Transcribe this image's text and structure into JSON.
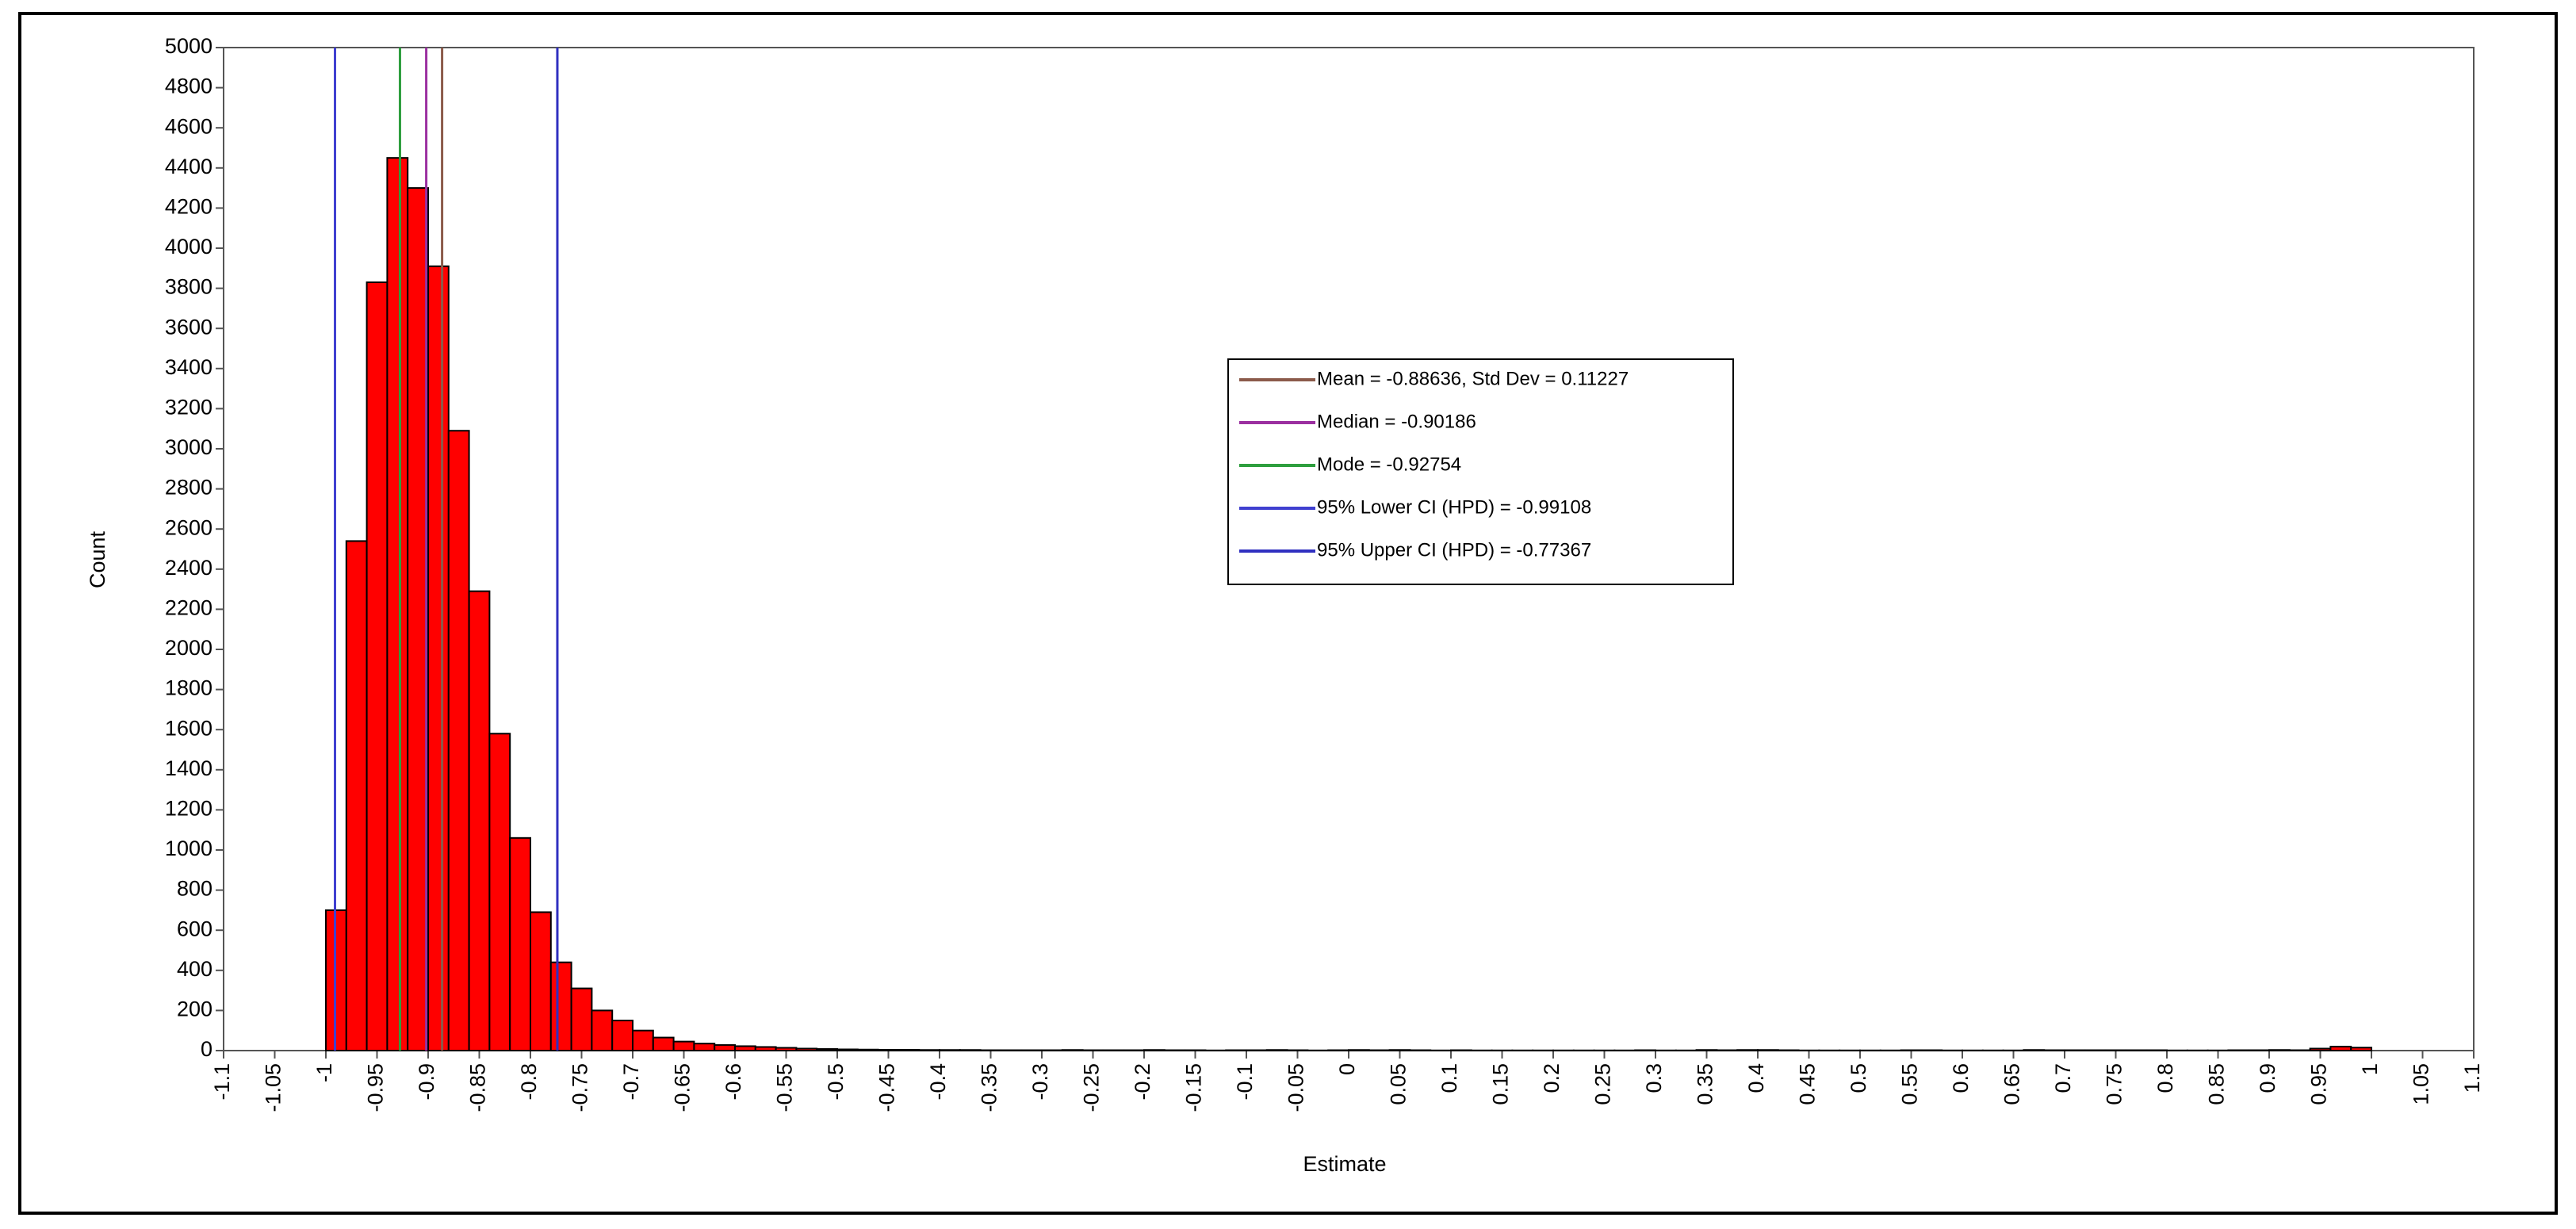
{
  "chart_data": {
    "type": "histogram",
    "x_label": "Estimate",
    "y_label": "Count",
    "bins": [
      -1,
      -0.98,
      -0.96,
      -0.94,
      -0.92,
      -0.9,
      -0.88,
      -0.86,
      -0.84,
      -0.82,
      -0.8,
      -0.78,
      -0.76,
      -0.74,
      -0.72,
      -0.7,
      -0.68,
      -0.66,
      -0.64,
      -0.62,
      -0.6,
      -0.58,
      -0.56,
      -0.54,
      -0.52,
      -0.5,
      -0.48,
      -0.46,
      -0.44,
      -0.42,
      -0.4,
      -0.38,
      -0.36,
      -0.34,
      -0.32,
      -0.3,
      -0.28,
      -0.26,
      -0.24,
      -0.22,
      -0.2,
      -0.18,
      -0.16,
      -0.14,
      -0.12,
      -0.1,
      -0.08,
      -0.06,
      -0.04,
      -0.02,
      0,
      0.02,
      0.04,
      0.06,
      0.08,
      0.1,
      0.12,
      0.14,
      0.16,
      0.18,
      0.2,
      0.22,
      0.24,
      0.26,
      0.28,
      0.3,
      0.32,
      0.34,
      0.36,
      0.38,
      0.4,
      0.42,
      0.44,
      0.46,
      0.48,
      0.5,
      0.52,
      0.54,
      0.56,
      0.58,
      0.6,
      0.62,
      0.64,
      0.66,
      0.68,
      0.7,
      0.72,
      0.74,
      0.76,
      0.78,
      0.8,
      0.82,
      0.84,
      0.86,
      0.88,
      0.9,
      0.92,
      0.94,
      0.96,
      0.98,
      1
    ],
    "values": [
      700,
      2540,
      3830,
      4450,
      4300,
      3910,
      3090,
      2290,
      1580,
      1060,
      690,
      440,
      310,
      200,
      150,
      100,
      65,
      45,
      35,
      28,
      22,
      18,
      14,
      10,
      8,
      6,
      5,
      4,
      4,
      3,
      3,
      3,
      2,
      2,
      2,
      2,
      3,
      2,
      2,
      2,
      3,
      2,
      2,
      1,
      2,
      2,
      3,
      2,
      1,
      2,
      3,
      2,
      3,
      2,
      1,
      2,
      1,
      1,
      1,
      1,
      1,
      1,
      1,
      1,
      2,
      1,
      1,
      3,
      2,
      3,
      3,
      2,
      1,
      1,
      1,
      1,
      1,
      2,
      2,
      1,
      1,
      1,
      1,
      3,
      2,
      2,
      2,
      2,
      2,
      2,
      1,
      1,
      1,
      2,
      2,
      3,
      2,
      10,
      20,
      15
    ],
    "color": "#ff0000",
    "xlim": [
      -1.1,
      1.1
    ],
    "xticks": [
      -1.1,
      -1.05,
      -1,
      -0.95,
      -0.9,
      -0.85,
      -0.8,
      -0.75,
      -0.7,
      -0.65,
      -0.6,
      -0.55,
      -0.5,
      -0.45,
      -0.4,
      -0.35,
      -0.3,
      -0.25,
      -0.2,
      -0.15,
      -0.1,
      -0.05,
      0,
      0.05,
      0.1,
      0.15,
      0.2,
      0.25,
      0.3,
      0.35,
      0.4,
      0.45,
      0.5,
      0.55,
      0.6,
      0.65,
      0.7,
      0.75,
      0.8,
      0.85,
      0.9,
      0.95,
      1,
      1.05,
      1.1
    ],
    "ylim": [
      0,
      5000
    ],
    "yticks": [
      0,
      200,
      400,
      600,
      800,
      1000,
      1200,
      1400,
      1600,
      1800,
      2000,
      2200,
      2400,
      2600,
      2800,
      3000,
      3200,
      3400,
      3600,
      3800,
      4000,
      4200,
      4400,
      4600,
      4800,
      5000
    ],
    "reference_lines": [
      {
        "name": "Mean = -0.88636, Std Dev = 0.11227",
        "value": -0.88636,
        "color": "#8b5a4a"
      },
      {
        "name": "Median = -0.90186",
        "value": -0.90186,
        "color": "#9b30a0"
      },
      {
        "name": "Mode = -0.92754",
        "value": -0.92754,
        "color": "#2e9e3e"
      },
      {
        "name": "95% Lower CI (HPD) = -0.99108",
        "value": -0.99108,
        "color": "#4040d0"
      },
      {
        "name": "95% Upper CI (HPD) = -0.77367",
        "value": -0.77367,
        "color": "#3030c0"
      }
    ]
  }
}
